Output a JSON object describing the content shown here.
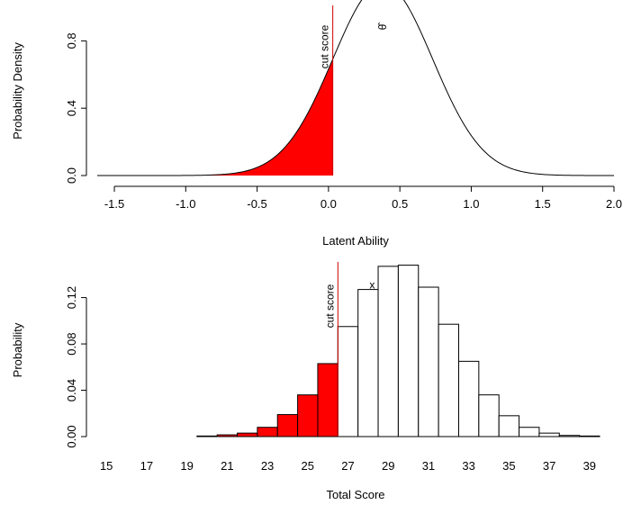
{
  "chart_data": [
    {
      "type": "area",
      "xlabel": "Latent Ability",
      "ylabel": "Probability Density",
      "xlim": [
        -1.62,
        2.0
      ],
      "ylim": [
        0,
        1.0
      ],
      "x_ticks": [
        "-1.5",
        "-1.0",
        "-0.5",
        "0.0",
        "0.5",
        "1.0",
        "1.5",
        "2.0"
      ],
      "y_ticks": [
        "0.0",
        "0.4",
        "0.8"
      ],
      "curve": {
        "distribution": "normal",
        "mean": 0.38,
        "sd": 0.35,
        "peak_density": 1.14
      },
      "cut_score": 0.03,
      "cut_label": "cut score",
      "peak_label": "θ̂",
      "fill_color_below_cut": "#ff0000",
      "cut_line_color": "#cc0000"
    },
    {
      "type": "bar",
      "xlabel": "Total Score",
      "ylabel": "Probability",
      "x_tick_labels": [
        "15",
        "17",
        "19",
        "21",
        "23",
        "25",
        "27",
        "29",
        "31",
        "33",
        "35",
        "37",
        "39"
      ],
      "y_ticks": [
        "0.00",
        "0.04",
        "0.08",
        "0.12"
      ],
      "ylim": [
        0,
        0.15
      ],
      "categories": [
        15,
        16,
        17,
        18,
        19,
        20,
        21,
        22,
        23,
        24,
        25,
        26,
        27,
        28,
        29,
        30,
        31,
        32,
        33,
        34,
        35,
        36,
        37,
        38,
        39
      ],
      "values": [
        0,
        0,
        0,
        0,
        0,
        0.0005,
        0.0015,
        0.003,
        0.008,
        0.019,
        0.036,
        0.063,
        0.095,
        0.127,
        0.147,
        0.148,
        0.129,
        0.097,
        0.065,
        0.036,
        0.018,
        0.008,
        0.003,
        0.001,
        0.0005
      ],
      "cut_score": 26.5,
      "cut_label": "cut score",
      "mean_marker": {
        "label": "x",
        "x": 28.2,
        "y": 0.128
      },
      "fill_color_below_cut": "#ff0000",
      "cut_line_color": "#cc0000"
    }
  ]
}
